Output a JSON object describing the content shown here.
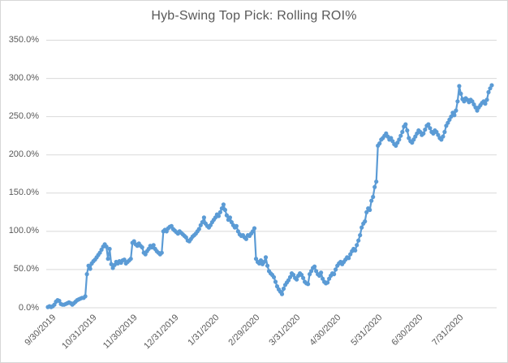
{
  "chart_data": {
    "type": "line",
    "title": "Hyb-Swing Top Pick: Rolling ROI%",
    "xlabel": "",
    "ylabel": "",
    "ylim": [
      0,
      350
    ],
    "y_tick_step": 50,
    "y_tick_labels": [
      "0.0%",
      "50.0%",
      "100.0%",
      "150.0%",
      "200.0%",
      "250.0%",
      "300.0%",
      "350.0%"
    ],
    "x_tick_labels": [
      "9/30/2019",
      "10/31/2019",
      "11/30/2019",
      "12/31/2019",
      "1/31/2020",
      "2/29/2020",
      "3/31/2020",
      "4/30/2020",
      "5/31/2020",
      "6/30/2020",
      "7/31/2020"
    ],
    "grid": true,
    "legend": "none",
    "marker": "circle",
    "colors": {
      "series": "#5B9BD5",
      "title_text": "#595959",
      "axis_text": "#595959",
      "gridline": "#D9D9D9",
      "chart_border": "#D7D7D7",
      "background": "#FFFFFF"
    },
    "series": [
      {
        "name": "Rolling ROI%",
        "unit": "%",
        "values": [
          1,
          2,
          1,
          2,
          4,
          8,
          10,
          9,
          5,
          4,
          4,
          5,
          6,
          7,
          6,
          4,
          6,
          8,
          10,
          11,
          12,
          13,
          13,
          15,
          44,
          55,
          51,
          58,
          61,
          63,
          66,
          69,
          72,
          76,
          80,
          83,
          80,
          64,
          77,
          57,
          52,
          56,
          60,
          58,
          61,
          59,
          62,
          63,
          58,
          60,
          62,
          64,
          85,
          87,
          83,
          81,
          84,
          81,
          79,
          72,
          70,
          74,
          77,
          81,
          79,
          82,
          77,
          74,
          72,
          70,
          72,
          100,
          102,
          100,
          104,
          106,
          107,
          103,
          101,
          99,
          97,
          100,
          98,
          96,
          94,
          92,
          88,
          87,
          90,
          93,
          95,
          97,
          100,
          103,
          108,
          112,
          118,
          110,
          107,
          105,
          108,
          112,
          115,
          118,
          122,
          120,
          125,
          130,
          135,
          128,
          121,
          115,
          118,
          112,
          108,
          105,
          107,
          100,
          96,
          94,
          95,
          92,
          90,
          95,
          94,
          97,
          100,
          104,
          64,
          60,
          58,
          62,
          57,
          60,
          66,
          55,
          48,
          45,
          43,
          40,
          34,
          28,
          24,
          21,
          18,
          25,
          30,
          33,
          36,
          40,
          45,
          43,
          39,
          37,
          42,
          45,
          43,
          39,
          34,
          32,
          31,
          44,
          48,
          52,
          54,
          48,
          44,
          42,
          46,
          38,
          34,
          32,
          33,
          38,
          42,
          45,
          44,
          50,
          55,
          58,
          60,
          57,
          60,
          63,
          66,
          65,
          70,
          74,
          77,
          75,
          82,
          88,
          95,
          105,
          110,
          113,
          125,
          130,
          128,
          140,
          145,
          158,
          165,
          212,
          215,
          220,
          222,
          225,
          228,
          224,
          220,
          222,
          218,
          214,
          212,
          216,
          220,
          225,
          230,
          237,
          240,
          232,
          222,
          218,
          216,
          220,
          224,
          228,
          232,
          230,
          226,
          228,
          233,
          238,
          240,
          235,
          230,
          228,
          232,
          230,
          226,
          222,
          220,
          224,
          230,
          238,
          242,
          246,
          250,
          255,
          252,
          258,
          270,
          290,
          280,
          273,
          270,
          274,
          272,
          269,
          272,
          270,
          266,
          262,
          258,
          262,
          265,
          268,
          270,
          267,
          272,
          282,
          287,
          291
        ]
      }
    ]
  }
}
